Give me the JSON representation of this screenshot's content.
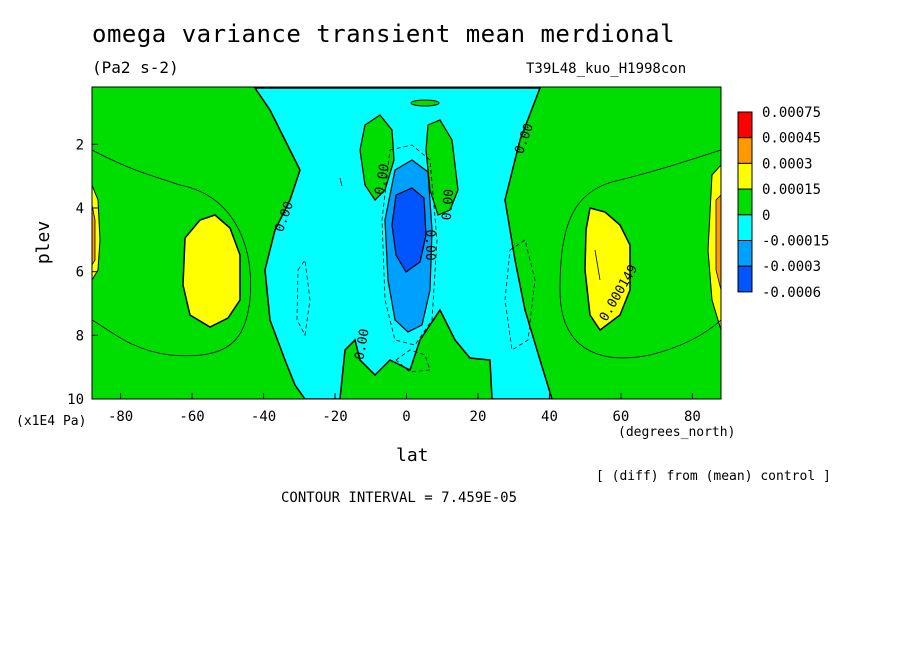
{
  "chart_data": {
    "type": "contour",
    "title": "omega variance transient mean merdional",
    "units": "(Pa2 s-2)",
    "run_label": "T39L48_kuo_H1998con",
    "xlabel": "lat",
    "xunits": "(degrees_north)",
    "ylabel": "plev",
    "yunits": "(x1E4 Pa)",
    "xlim": [
      -88,
      88
    ],
    "ylim": [
      10,
      0.2
    ],
    "x_ticks": [
      "-80",
      "-60",
      "-40",
      "-20",
      "0",
      "20",
      "40",
      "60",
      "80"
    ],
    "x_tick_values": [
      -80,
      -60,
      -40,
      -20,
      0,
      20,
      40,
      60,
      80
    ],
    "y_ticks": [
      "2",
      "4",
      "6",
      "8",
      "10"
    ],
    "y_tick_values": [
      2,
      4,
      6,
      8,
      10
    ],
    "legend_levels": [
      "0.00075",
      "0.00045",
      "0.0003",
      "0.00015",
      "0",
      "-0.00015",
      "-0.0003",
      "-0.0006"
    ],
    "legend_colors": [
      "#ff0000",
      "#ff9900",
      "#ffff00",
      "#00dd00",
      "#00ffff",
      "#00a0ff",
      "#0055ff"
    ],
    "contour_labels": [
      "0.00",
      "0.00",
      "0.00",
      "0.00",
      "0.00",
      "0.00",
      "0.000149",
      "-0.000"
    ],
    "contour_interval_text": "CONTOUR INTERVAL = 7.459E-05",
    "footnote": "[ (diff) from (mean) control ]"
  }
}
